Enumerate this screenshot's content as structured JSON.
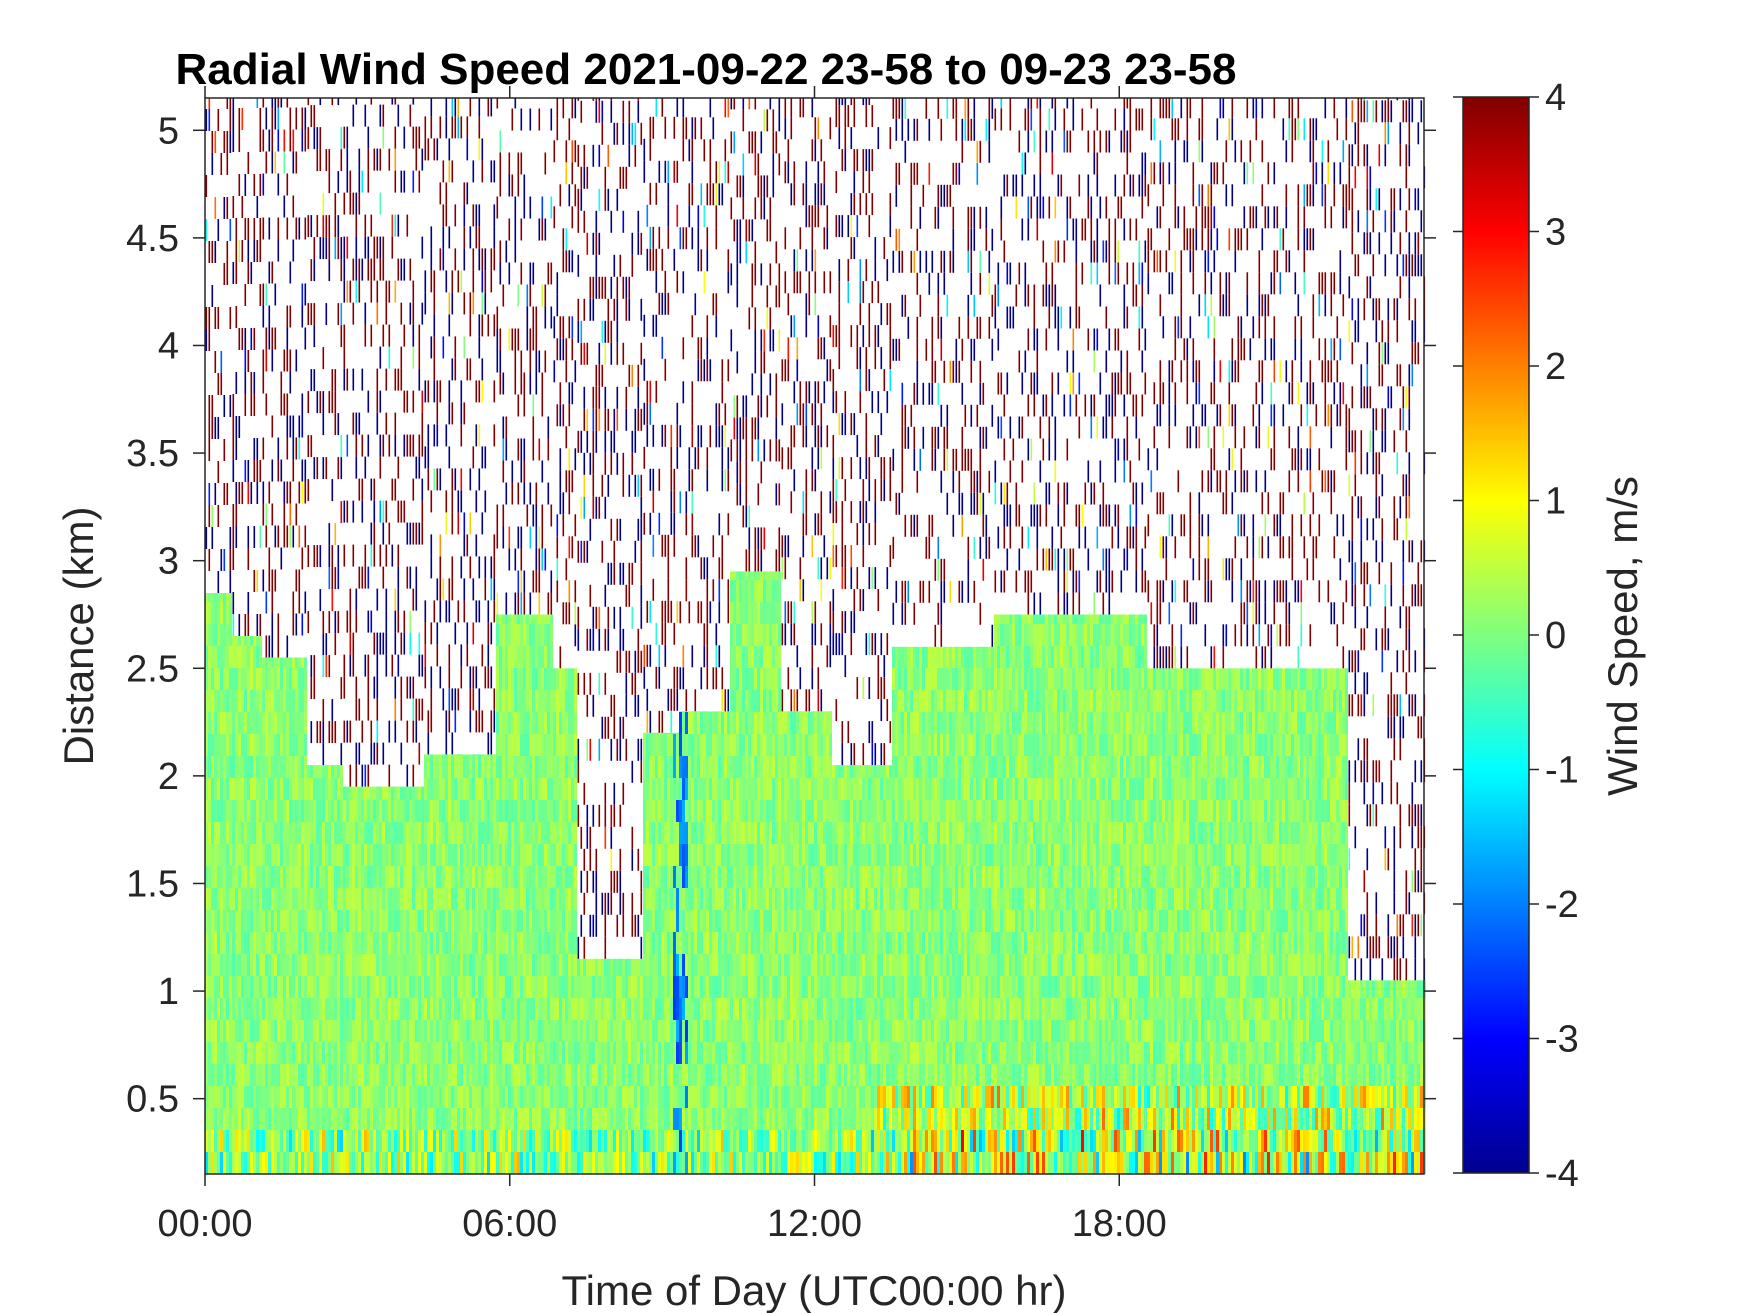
{
  "chart_data": {
    "type": "heatmap",
    "title": "Radial Wind Speed 2021-09-22 23-58 to 09-23 23-58",
    "xlabel": "Time of Day (UTC00:00 hr)",
    "ylabel": "Distance (km)",
    "colorbar_label": "Wind Speed, m/s",
    "colormap": "jet",
    "x_unit": "hours",
    "xlim": [
      0,
      24
    ],
    "ylim": [
      0.15,
      5.15
    ],
    "clim": [
      -4,
      4
    ],
    "x_ticks": [
      0,
      6,
      12,
      18
    ],
    "x_tick_labels": [
      "00:00",
      "06:00",
      "12:00",
      "18:00"
    ],
    "y_ticks": [
      0.5,
      1,
      1.5,
      2,
      2.5,
      3,
      3.5,
      4,
      4.5,
      5
    ],
    "y_tick_labels": [
      "0.5",
      "1",
      "1.5",
      "2",
      "2.5",
      "3",
      "3.5",
      "4",
      "4.5",
      "5"
    ],
    "colorbar_ticks": [
      -4,
      -3,
      -2,
      -1,
      0,
      1,
      2,
      3,
      4
    ],
    "colorbar_tick_labels": [
      "-4",
      "-3",
      "-2",
      "-1",
      "0",
      "1",
      "2",
      "3",
      "4"
    ],
    "valid_data_top_km": [
      {
        "x": [
          0.0,
          0.5
        ],
        "top": 2.85
      },
      {
        "x": [
          0.5,
          1.1
        ],
        "top": 2.65
      },
      {
        "x": [
          1.1,
          2.0
        ],
        "top": 2.55
      },
      {
        "x": [
          2.0,
          2.7
        ],
        "top": 2.05
      },
      {
        "x": [
          2.7,
          3.2
        ],
        "top": 1.95
      },
      {
        "x": [
          3.2,
          4.3
        ],
        "top": 1.95
      },
      {
        "x": [
          4.3,
          5.7
        ],
        "top": 2.1
      },
      {
        "x": [
          5.7,
          6.8
        ],
        "top": 2.75
      },
      {
        "x": [
          6.8,
          7.3
        ],
        "top": 2.5
      },
      {
        "x": [
          7.3,
          8.6
        ],
        "top": 1.15
      },
      {
        "x": [
          8.6,
          9.3
        ],
        "top": 2.2
      },
      {
        "x": [
          9.3,
          10.3
        ],
        "top": 2.3
      },
      {
        "x": [
          10.3,
          11.3
        ],
        "top": 2.95
      },
      {
        "x": [
          11.3,
          12.3
        ],
        "top": 2.3
      },
      {
        "x": [
          12.3,
          13.5
        ],
        "top": 2.05
      },
      {
        "x": [
          13.5,
          15.5
        ],
        "top": 2.6
      },
      {
        "x": [
          15.5,
          18.5
        ],
        "top": 2.75
      },
      {
        "x": [
          18.5,
          22.5
        ],
        "top": 2.5
      },
      {
        "x": [
          22.5,
          24.0
        ],
        "top": 1.05
      }
    ],
    "background_noise_values": [
      -4,
      4
    ]
  }
}
